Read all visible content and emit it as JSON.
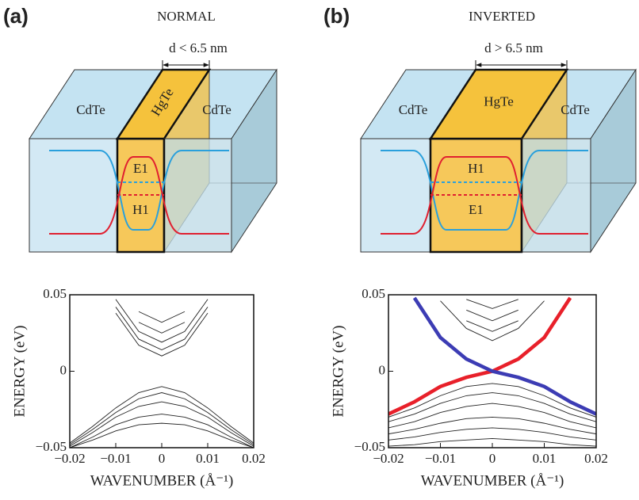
{
  "panels": [
    {
      "label": "(a)",
      "title": "NORMAL",
      "thickness": "d < 6.5 nm",
      "layers": [
        "CdTe",
        "HgTe",
        "CdTe"
      ],
      "levels": [
        "E1",
        "H1"
      ],
      "chart": {
        "type": "line",
        "ylabel": "ENERGY (eV)",
        "xlabel": "WAVENUMBER (Å⁻¹)",
        "xlim": [
          -0.02,
          0.02
        ],
        "ylim": [
          -0.05,
          0.05
        ],
        "xticks": [
          {
            "value": -0.02,
            "label": "−0.02"
          },
          {
            "value": -0.01,
            "label": "−0.01"
          },
          0,
          0.01,
          0.02
        ],
        "yticks": [
          {
            "value": -0.05,
            "label": "−0.05"
          },
          0,
          0.05
        ],
        "x": [
          -0.02,
          -0.015,
          -0.01,
          -0.005,
          0,
          0.005,
          0.01,
          0.015,
          0.02
        ],
        "series": [
          {
            "color": "#222222",
            "values": [
              null,
              null,
              0.038,
              0.017,
              0.01,
              0.017,
              0.038,
              null,
              null
            ]
          },
          {
            "color": "#222222",
            "values": [
              null,
              null,
              0.042,
              0.021,
              0.014,
              0.021,
              0.042,
              null,
              null
            ]
          },
          {
            "color": "#222222",
            "values": [
              null,
              null,
              0.047,
              0.026,
              0.019,
              0.026,
              0.047,
              null,
              null
            ]
          },
          {
            "color": "#222222",
            "values": [
              null,
              null,
              null,
              0.032,
              0.025,
              0.032,
              null,
              null,
              null
            ]
          },
          {
            "color": "#222222",
            "values": [
              null,
              null,
              null,
              0.039,
              0.032,
              0.039,
              null,
              null,
              null
            ]
          },
          {
            "color": "#222222",
            "values": [
              -0.047,
              -0.036,
              -0.024,
              -0.014,
              -0.01,
              -0.014,
              -0.024,
              -0.036,
              -0.047
            ]
          },
          {
            "color": "#222222",
            "values": [
              -0.048,
              -0.038,
              -0.027,
              -0.018,
              -0.014,
              -0.018,
              -0.027,
              -0.038,
              -0.048
            ]
          },
          {
            "color": "#222222",
            "values": [
              -0.049,
              -0.04,
              -0.03,
              -0.023,
              -0.02,
              -0.023,
              -0.03,
              -0.04,
              -0.049
            ]
          },
          {
            "color": "#222222",
            "values": [
              -0.05,
              -0.043,
              -0.035,
              -0.03,
              -0.028,
              -0.03,
              -0.035,
              -0.043,
              -0.05
            ]
          },
          {
            "color": "#222222",
            "values": [
              -0.05,
              -0.045,
              -0.039,
              -0.035,
              -0.034,
              -0.035,
              -0.039,
              -0.045,
              -0.05
            ]
          }
        ]
      }
    },
    {
      "label": "(b)",
      "title": "INVERTED",
      "thickness": "d > 6.5 nm",
      "layers": [
        "CdTe",
        "HgTe",
        "CdTe"
      ],
      "levels": [
        "H1",
        "E1"
      ],
      "chart": {
        "type": "line",
        "ylabel": "ENERGY (eV)",
        "xlabel": "WAVENUMBER (Å⁻¹)",
        "xlim": [
          -0.02,
          0.02
        ],
        "ylim": [
          -0.05,
          0.05
        ],
        "xticks": [
          {
            "value": -0.02,
            "label": "−0.02"
          },
          {
            "value": -0.01,
            "label": "−0.01"
          },
          0,
          0.01,
          0.02
        ],
        "yticks": [
          {
            "value": -0.05,
            "label": "−0.05"
          },
          0,
          0.05
        ],
        "x": [
          -0.02,
          -0.015,
          -0.01,
          -0.005,
          0,
          0.005,
          0.01,
          0.015,
          0.02
        ],
        "series": [
          {
            "color": "#222222",
            "values": [
              null,
              null,
              0.046,
              0.028,
              0.02,
              0.028,
              0.046,
              null,
              null
            ]
          },
          {
            "color": "#222222",
            "values": [
              null,
              null,
              null,
              0.033,
              0.026,
              0.033,
              null,
              null,
              null
            ]
          },
          {
            "color": "#222222",
            "values": [
              null,
              null,
              null,
              0.04,
              0.033,
              0.04,
              null,
              null,
              null
            ]
          },
          {
            "color": "#222222",
            "values": [
              null,
              null,
              null,
              0.047,
              0.041,
              0.047,
              null,
              null,
              null
            ]
          },
          {
            "color": "#222222",
            "values": [
              -0.03,
              -0.024,
              -0.016,
              -0.01,
              -0.008,
              -0.01,
              -0.016,
              -0.024,
              -0.03
            ]
          },
          {
            "color": "#222222",
            "values": [
              -0.033,
              -0.028,
              -0.021,
              -0.016,
              -0.014,
              -0.016,
              -0.021,
              -0.028,
              -0.033
            ]
          },
          {
            "color": "#222222",
            "values": [
              -0.037,
              -0.033,
              -0.027,
              -0.023,
              -0.021,
              -0.023,
              -0.027,
              -0.033,
              -0.037
            ]
          },
          {
            "color": "#222222",
            "values": [
              -0.041,
              -0.038,
              -0.034,
              -0.031,
              -0.03,
              -0.031,
              -0.034,
              -0.038,
              -0.041
            ]
          },
          {
            "color": "#222222",
            "values": [
              -0.045,
              -0.043,
              -0.04,
              -0.038,
              -0.037,
              -0.038,
              -0.04,
              -0.043,
              -0.045
            ]
          },
          {
            "color": "#222222",
            "values": [
              -0.049,
              -0.048,
              -0.046,
              -0.045,
              -0.044,
              -0.045,
              -0.046,
              -0.048,
              -0.049
            ]
          },
          {
            "color": "#e8202a",
            "values": [
              -0.028,
              -0.02,
              -0.01,
              -0.004,
              0,
              0.008,
              0.022,
              0.048,
              null
            ]
          },
          {
            "color": "#3c3cb4",
            "values": [
              null,
              0.048,
              0.022,
              0.008,
              0,
              -0.004,
              -0.01,
              -0.02,
              -0.028
            ]
          }
        ]
      }
    }
  ]
}
